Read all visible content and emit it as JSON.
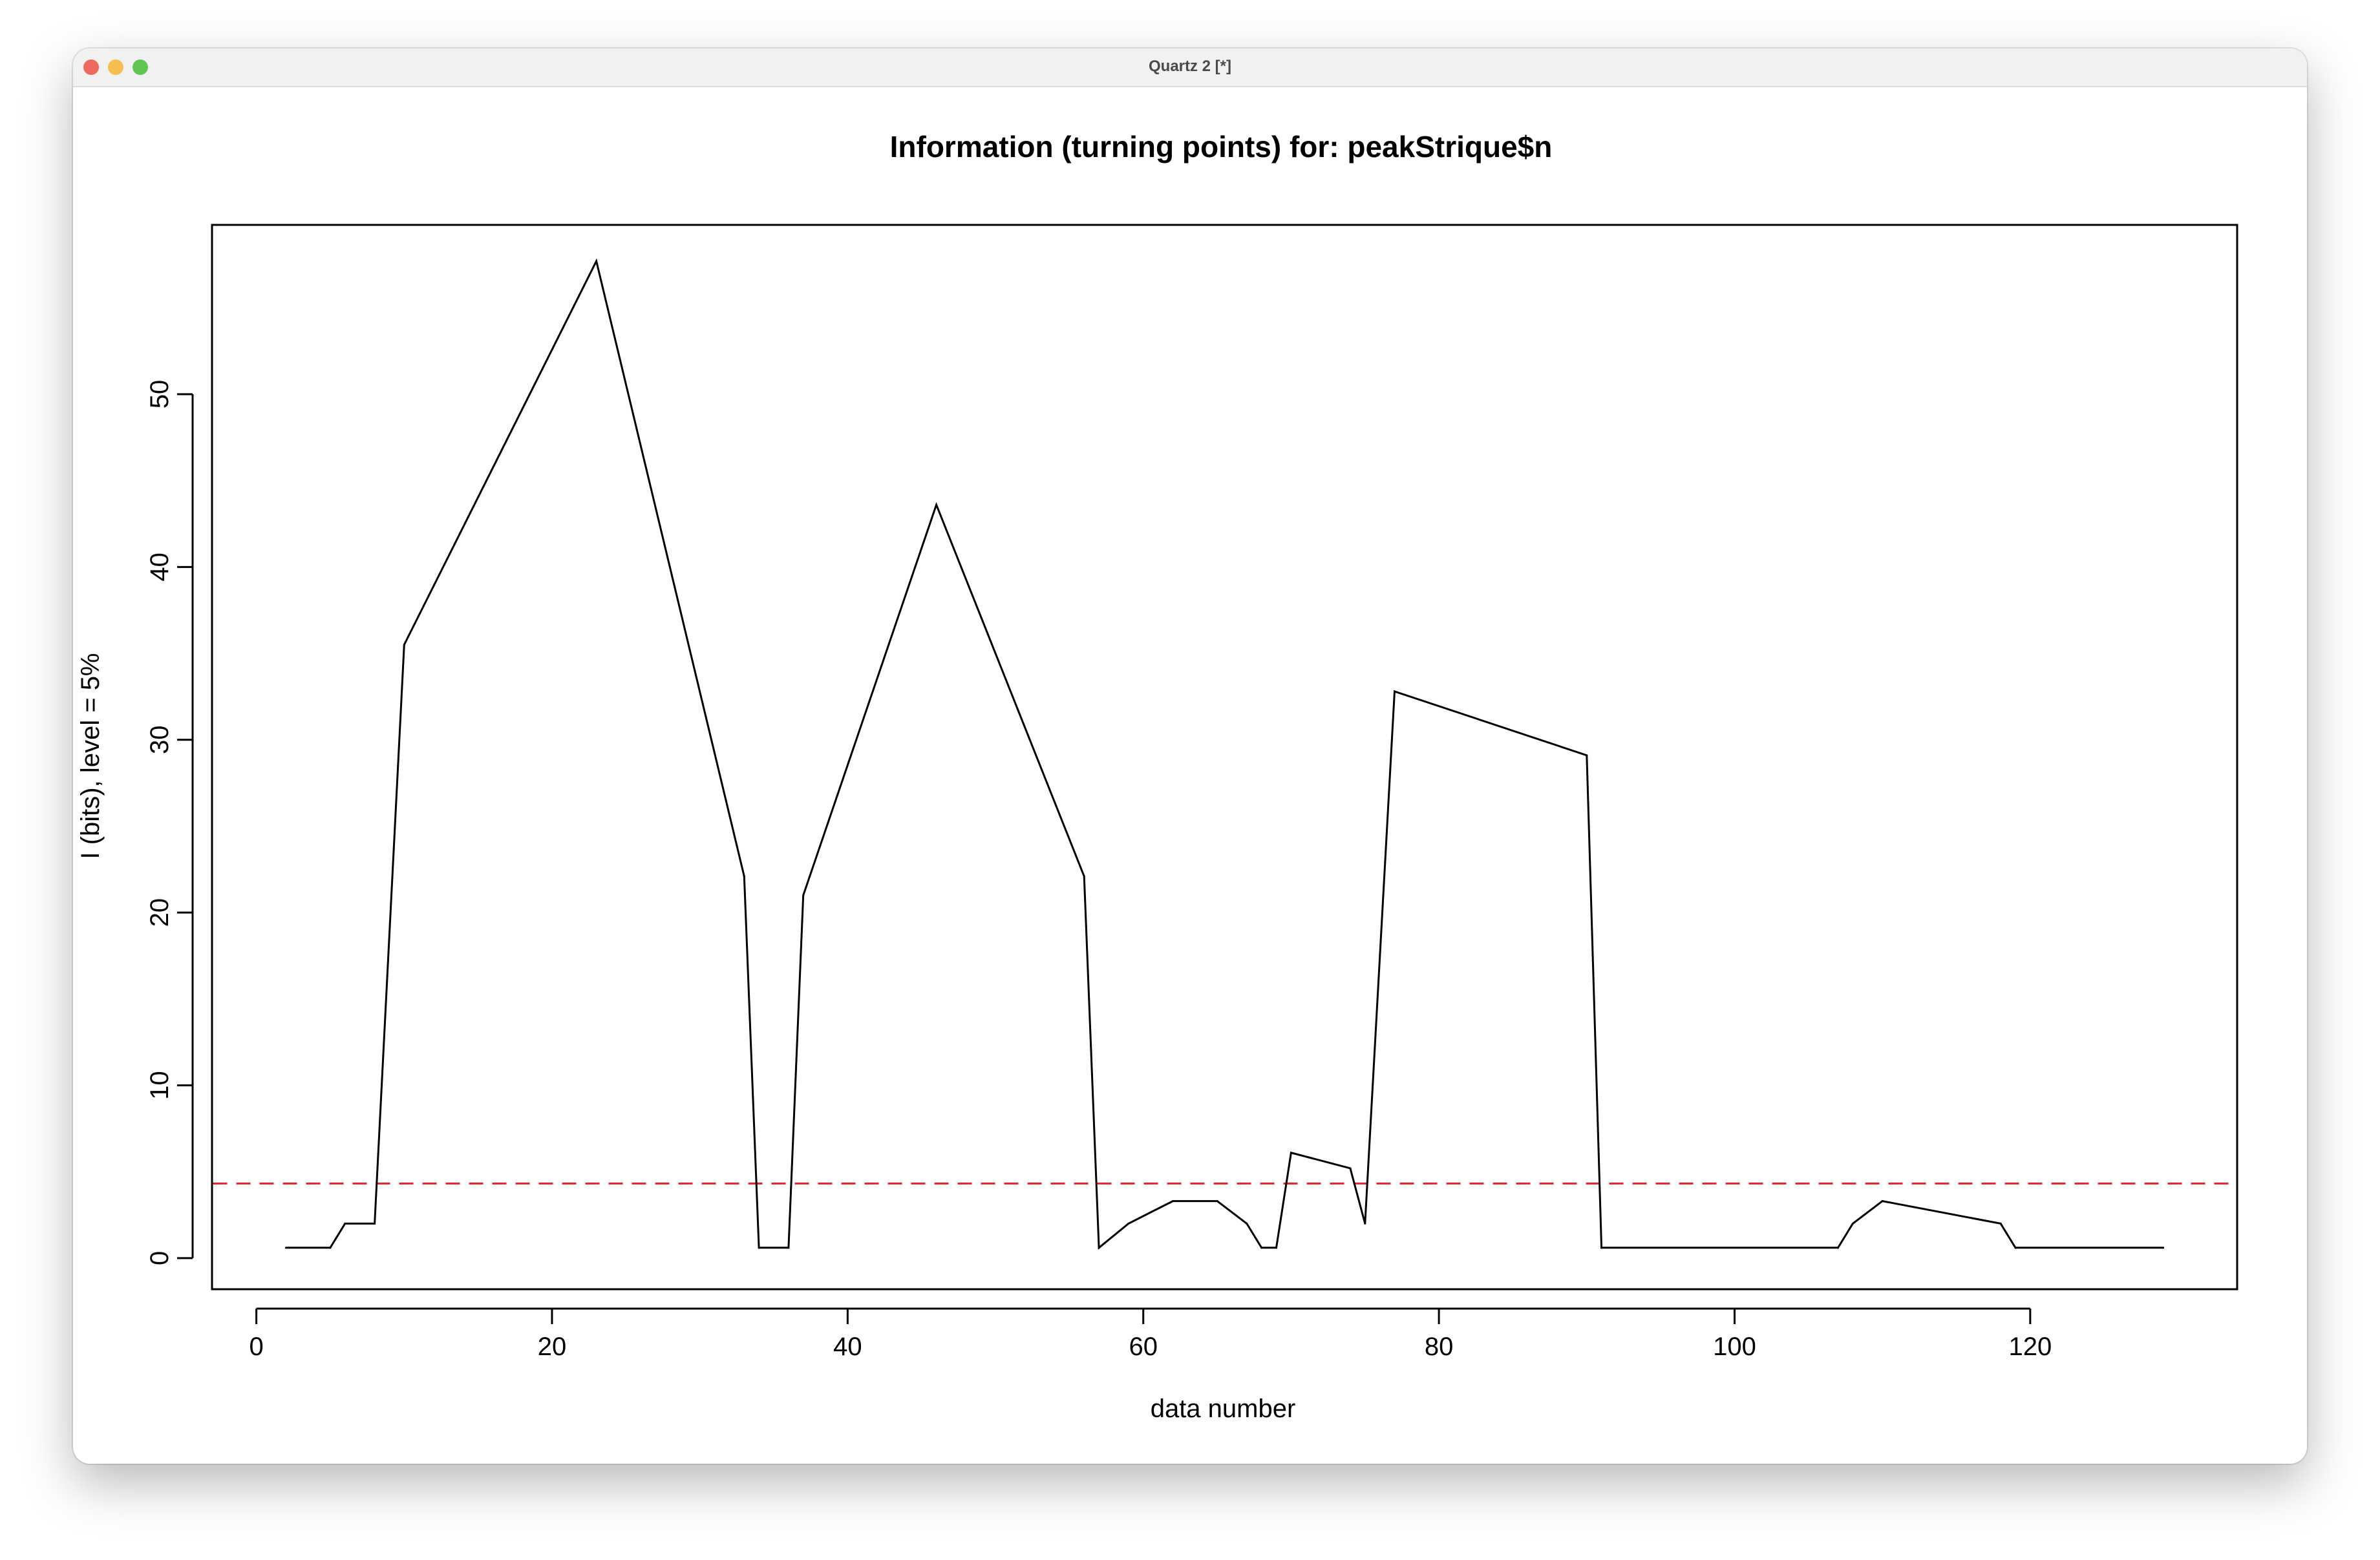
{
  "window": {
    "title": "Quartz 2 [*]",
    "colors": {
      "close": "#ee6a5f",
      "minimize": "#f5bf4f",
      "maximize": "#61c554"
    }
  },
  "chart_data": {
    "type": "line",
    "title": "Information (turning points) for: peakStrique$n",
    "xlabel": "data number",
    "ylabel": "I (bits), level = 5%",
    "xlim": [
      -3,
      134
    ],
    "ylim": [
      -1.8,
      59.8
    ],
    "x_ticks": [
      0,
      20,
      40,
      60,
      80,
      100,
      120
    ],
    "y_ticks": [
      0,
      10,
      20,
      30,
      40,
      50
    ],
    "grid": false,
    "series": [
      {
        "color": "#000000",
        "x": [
          2,
          5,
          6,
          8,
          10,
          23,
          33,
          34,
          36,
          37,
          46,
          56,
          57,
          59,
          62,
          65,
          67,
          68,
          69,
          70,
          74,
          75,
          77,
          90,
          91,
          107,
          108,
          110,
          118,
          119,
          129
        ],
        "y": [
          0.6,
          0.6,
          2.0,
          2.0,
          35.5,
          57.7,
          22.1,
          0.6,
          0.6,
          21.0,
          43.6,
          22.1,
          0.6,
          2.0,
          3.3,
          3.3,
          2.0,
          0.6,
          0.6,
          6.1,
          5.2,
          2.0,
          32.8,
          29.1,
          0.6,
          0.6,
          2.0,
          3.3,
          2.0,
          0.6,
          0.6
        ]
      }
    ],
    "threshold": {
      "y": 4.32,
      "color": "#e0262d",
      "style": "dashed"
    }
  }
}
